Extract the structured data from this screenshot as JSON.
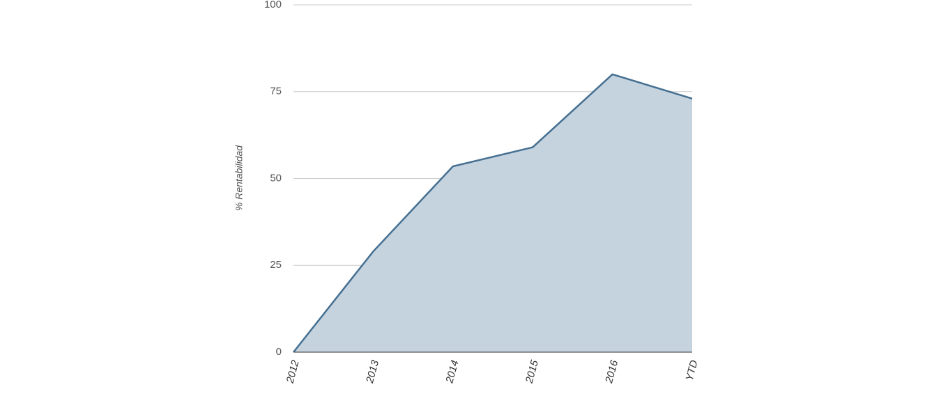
{
  "chart_data": {
    "type": "area",
    "y_label": "% Rentabilidad",
    "categories": [
      "2012",
      "2013",
      "2014",
      "2015",
      "2016",
      "YTD"
    ],
    "values": [
      0,
      29,
      53.5,
      59,
      80,
      73
    ],
    "color": "#456f91",
    "fill_color": "#c5d3df",
    "ylim": [
      0,
      100
    ],
    "yticks": [
      0,
      25,
      50,
      75,
      100
    ],
    "grid": true
  }
}
